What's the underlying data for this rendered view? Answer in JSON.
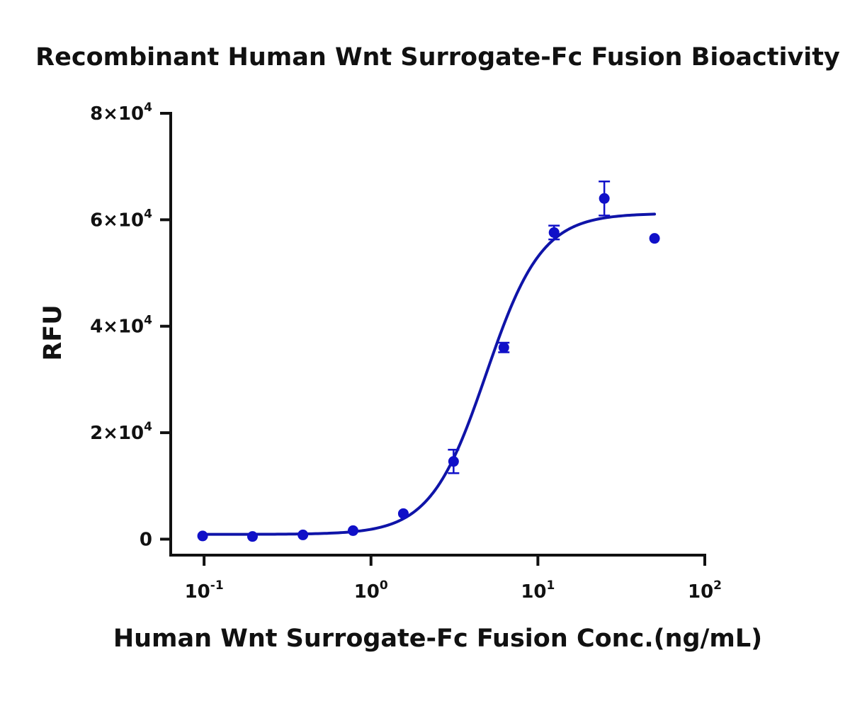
{
  "chart_data": {
    "type": "scatter",
    "title": "Recombinant Human Wnt Surrogate-Fc Fusion Bioactivity",
    "xlabel": "Human Wnt Surrogate-Fc Fusion Conc.(ng/mL)",
    "ylabel": "RFU",
    "x_scale": "log",
    "xlim": [
      0.0631,
      100
    ],
    "ylim": [
      -3000,
      80000
    ],
    "x_ticks": [
      {
        "value": 0.1,
        "base": "10",
        "exp": "-1"
      },
      {
        "value": 1,
        "base": "10",
        "exp": "0"
      },
      {
        "value": 10,
        "base": "10",
        "exp": "1"
      },
      {
        "value": 100,
        "base": "10",
        "exp": "2"
      }
    ],
    "y_ticks": [
      {
        "value": 0,
        "mantissa": "0",
        "exp": ""
      },
      {
        "value": 20000,
        "mantissa": "2×10",
        "exp": "4"
      },
      {
        "value": 40000,
        "mantissa": "4×10",
        "exp": "4"
      },
      {
        "value": 60000,
        "mantissa": "6×10",
        "exp": "4"
      },
      {
        "value": 80000,
        "mantissa": "8×10",
        "exp": "4"
      }
    ],
    "series": [
      {
        "color": "#1010c8",
        "points": [
          {
            "x": 0.098,
            "y": 600,
            "err": 0
          },
          {
            "x": 0.195,
            "y": 500,
            "err": 0
          },
          {
            "x": 0.391,
            "y": 800,
            "err": 0
          },
          {
            "x": 0.781,
            "y": 1600,
            "err": 0
          },
          {
            "x": 1.5625,
            "y": 4800,
            "err": 0
          },
          {
            "x": 3.125,
            "y": 14600,
            "err": 2200
          },
          {
            "x": 6.25,
            "y": 36000,
            "err": 900
          },
          {
            "x": 12.5,
            "y": 57600,
            "err": 1300
          },
          {
            "x": 25,
            "y": 64000,
            "err": 3200
          },
          {
            "x": 50,
            "y": 56500,
            "err": 0
          }
        ]
      }
    ],
    "fit_curve": {
      "model": "4PL",
      "bottom": 900,
      "top": 61200,
      "ec50": 4.9,
      "hill": 2.6,
      "x_range": [
        0.098,
        50
      ],
      "color": "#0f14a8"
    },
    "grid": false,
    "legend": "none"
  }
}
